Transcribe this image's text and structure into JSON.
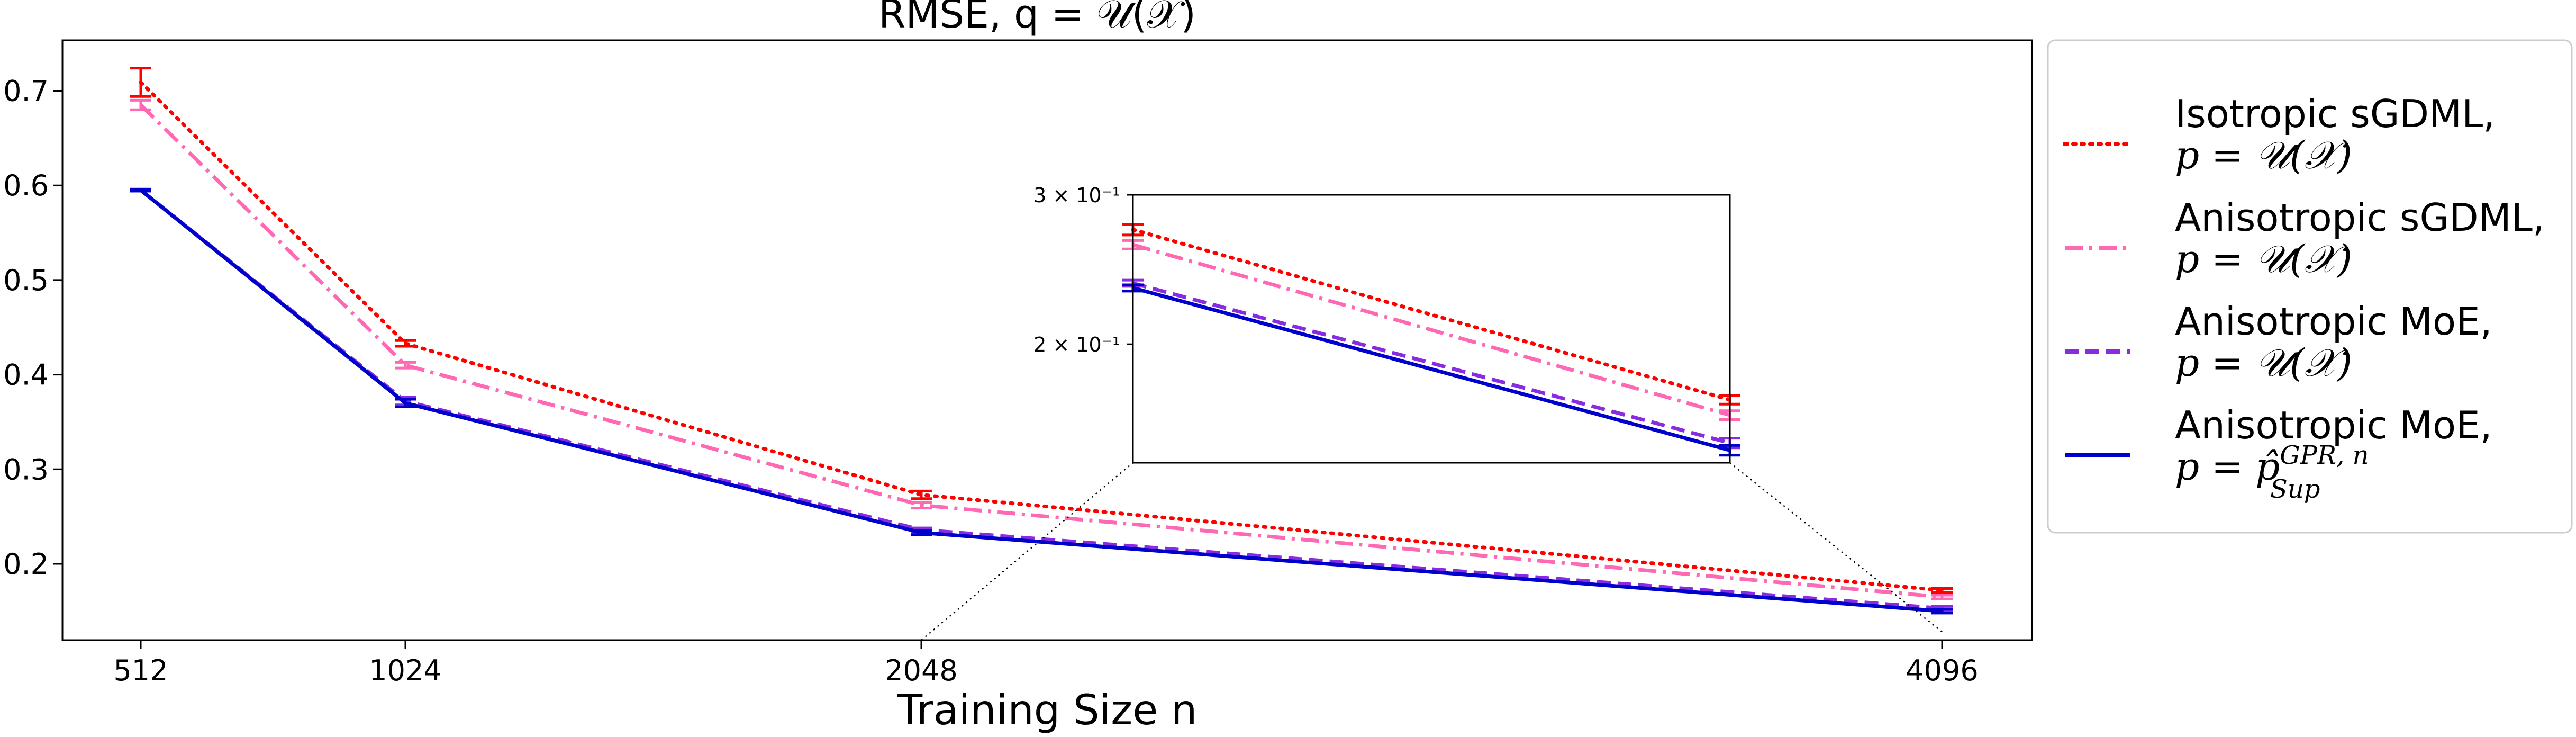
{
  "chart_data": {
    "type": "line",
    "title": "RMSE, q = 𝒰(𝒳)",
    "xlabel": "Training Size n",
    "ylabel": "",
    "x": [
      512,
      1024,
      2048,
      4096
    ],
    "xticks": [
      "512",
      "1024",
      "2048",
      "4096"
    ],
    "yticks": [
      "0.2",
      "0.3",
      "0.4",
      "0.5",
      "0.6",
      "0.7"
    ],
    "ylim": [
      0.12,
      0.755
    ],
    "grid": false,
    "legend_position": "right, outside",
    "series": [
      {
        "name": "Isotropic sGDML, p = 𝒰(𝒳)",
        "label_line1": "Isotropic sGDML,",
        "label_line2": "p = 𝒰(𝒳)",
        "color": "#ff0000",
        "style": "dotted",
        "values": [
          0.709,
          0.433,
          0.273,
          0.172
        ],
        "errors": [
          0.015,
          0.003,
          0.004,
          0.002
        ]
      },
      {
        "name": "Anisotropic sGDML, p = 𝒰(𝒳)",
        "label_line1": "Anisotropic sGDML,",
        "label_line2": "p = 𝒰(𝒳)",
        "color": "#ff69b4",
        "style": "dashdot",
        "values": [
          0.685,
          0.41,
          0.262,
          0.165
        ],
        "errors": [
          0.005,
          0.003,
          0.003,
          0.002
        ]
      },
      {
        "name": "Anisotropic MoE, p = 𝒰(𝒳)",
        "label_line1": "Anisotropic MoE,",
        "label_line2": "p = 𝒰(𝒳)",
        "color": "#8a2be2",
        "style": "dashed",
        "values": [
          0.595,
          0.372,
          0.236,
          0.153
        ],
        "errors": [
          0.001,
          0.004,
          0.002,
          0.002
        ]
      },
      {
        "name": "Anisotropic MoE, p = p̂_Sup^{GPR,n}",
        "label_line1": "Anisotropic MoE,",
        "label_line2": "p = p̂",
        "label_sup": "GPR, n",
        "label_sub": "Sup",
        "color": "#0000cd",
        "style": "solid",
        "values": [
          0.595,
          0.37,
          0.233,
          0.15
        ],
        "errors": [
          0.001,
          0.004,
          0.002,
          0.002
        ]
      }
    ],
    "inset": {
      "xlim": [
        2048,
        4096
      ],
      "ylim_log": [
        0.145,
        0.3
      ],
      "ytick_labels": [
        {
          "value": 0.3,
          "label": "3 × 10⁻¹"
        },
        {
          "value": 0.2,
          "label": "2 × 10⁻¹"
        }
      ],
      "y_scale": "log"
    }
  }
}
